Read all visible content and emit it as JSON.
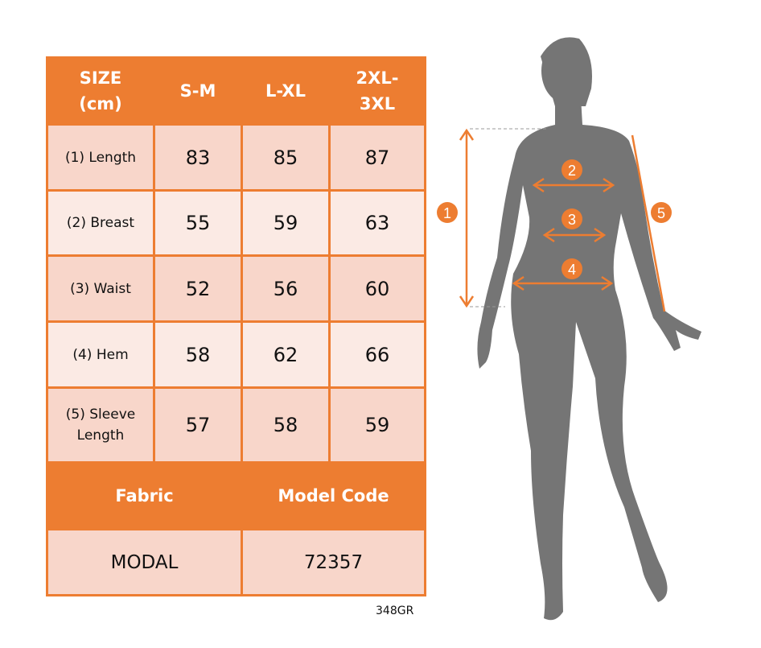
{
  "table": {
    "headers": [
      "SIZE\n(cm)",
      "S-M",
      "L-XL",
      "2XL-\n3XL"
    ],
    "rows": [
      {
        "label": "(1) Length",
        "values": [
          "83",
          "85",
          "87"
        ]
      },
      {
        "label": "(2) Breast",
        "values": [
          "55",
          "59",
          "63"
        ]
      },
      {
        "label": "(3) Waist",
        "values": [
          "52",
          "56",
          "60"
        ]
      },
      {
        "label": "(4) Hem",
        "values": [
          "58",
          "62",
          "66"
        ]
      },
      {
        "label": "(5) Sleeve\nLength",
        "values": [
          "57",
          "58",
          "59"
        ]
      }
    ],
    "footer_headers": [
      "Fabric",
      "Model Code"
    ],
    "footer_values": [
      "MODAL",
      "72357"
    ]
  },
  "code": "348GR",
  "markers": [
    "1",
    "2",
    "3",
    "4",
    "5"
  ],
  "colors": {
    "accent": "#ed7d31",
    "cell_dark": "#f8d6ca",
    "cell_light": "#fbeae4",
    "silhouette": "#757575"
  }
}
